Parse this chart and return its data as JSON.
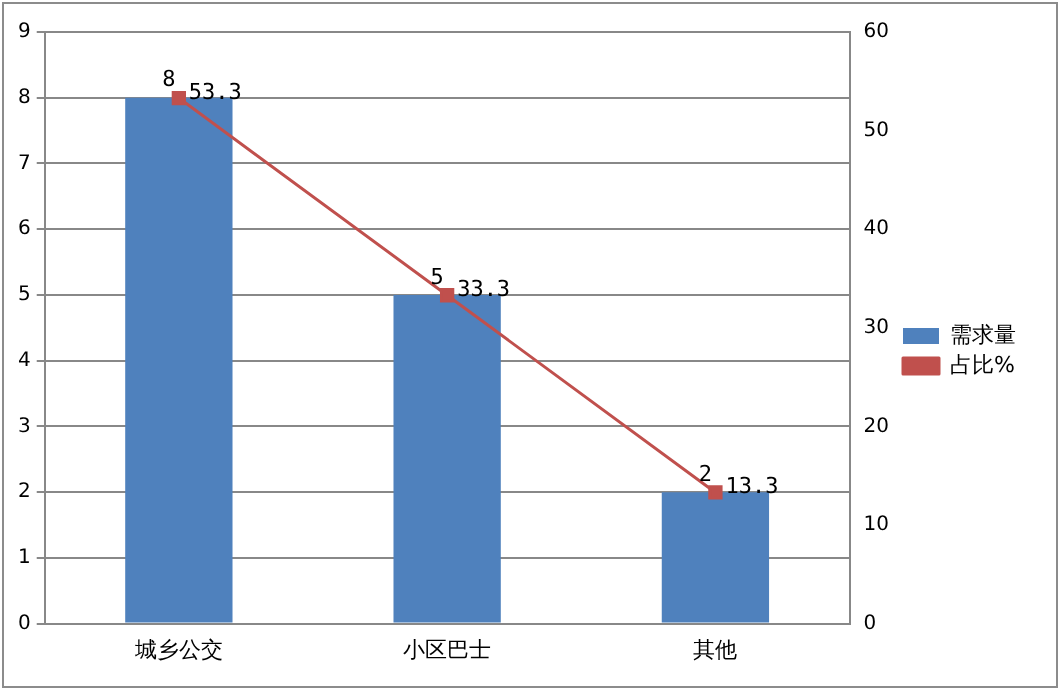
{
  "chart_data": {
    "type": "bar",
    "categories": [
      "城乡公交",
      "小区巴士",
      "其他"
    ],
    "series": [
      {
        "name": "需求量",
        "color": "#4f81bd",
        "values": [
          8,
          5,
          2
        ]
      },
      {
        "name": "占比%",
        "type": "line",
        "axis": "y2",
        "color": "#c0504d",
        "marker": "square",
        "values": [
          53.3,
          33.3,
          13.3
        ]
      }
    ],
    "ylim": [
      0,
      9
    ],
    "yticks": [
      0,
      1,
      2,
      3,
      4,
      5,
      6,
      7,
      8,
      9
    ],
    "y2lim": [
      0,
      60
    ],
    "y2ticks": [
      0,
      10,
      20,
      30,
      40,
      50,
      60
    ],
    "grid": "y",
    "legend": "right",
    "data_labels": true
  }
}
